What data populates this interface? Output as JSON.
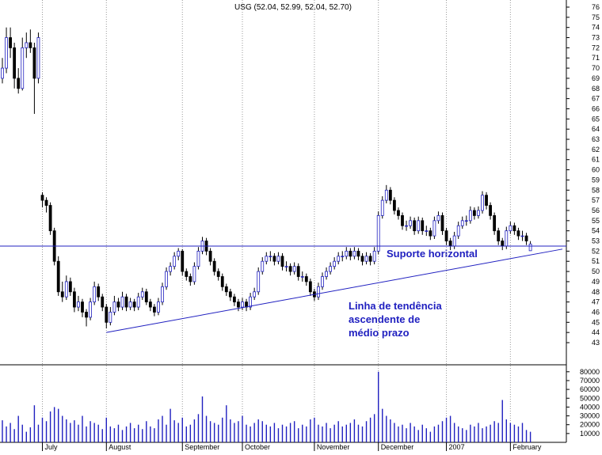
{
  "chart_data": {
    "type": "candlestick",
    "title": "USG (52.04, 52.99, 52.04, 52.70)",
    "ohlc": [
      [
        69,
        71,
        68.5,
        70
      ],
      [
        70,
        74,
        69.5,
        73
      ],
      [
        73,
        74,
        71,
        72
      ],
      [
        72,
        72.5,
        68,
        69
      ],
      [
        69,
        70,
        67.5,
        68
      ],
      [
        68,
        73,
        67.8,
        72
      ],
      [
        72,
        73.5,
        71,
        72.5
      ],
      [
        72.5,
        73.8,
        71.5,
        72
      ],
      [
        72,
        72.5,
        65.5,
        69
      ],
      [
        69,
        73.5,
        68.5,
        73
      ],
      [
        57.5,
        57.8,
        56.3,
        57
      ],
      [
        57,
        57.3,
        55.8,
        56.5
      ],
      [
        56.5,
        56.8,
        53.6,
        54
      ],
      [
        54,
        54.3,
        50.6,
        51
      ],
      [
        51,
        51.5,
        47.6,
        48
      ],
      [
        48,
        49,
        47,
        47.5
      ],
      [
        47.5,
        49.6,
        47.2,
        49
      ],
      [
        49,
        49.4,
        47.6,
        48
      ],
      [
        48,
        48.4,
        46,
        46.5
      ],
      [
        46.5,
        47.6,
        46.1,
        47
      ],
      [
        47,
        47.3,
        45.5,
        46
      ],
      [
        46,
        46.3,
        44.6,
        45.5
      ],
      [
        45.5,
        47.4,
        45.2,
        47
      ],
      [
        47,
        49,
        46.7,
        48.5
      ],
      [
        48.5,
        48.8,
        47.1,
        47.5
      ],
      [
        47.5,
        47.8,
        46.1,
        46.5
      ],
      [
        46.5,
        46.8,
        44.4,
        45
      ],
      [
        45,
        46.5,
        44.7,
        46
      ],
      [
        46,
        47.6,
        45.7,
        47
      ],
      [
        47,
        47.4,
        46.1,
        46.5
      ],
      [
        46.5,
        48,
        46.2,
        47.5
      ],
      [
        47.5,
        47.8,
        46.1,
        46.5
      ],
      [
        46.5,
        47.4,
        46.2,
        47
      ],
      [
        47,
        47.3,
        46.1,
        46.5
      ],
      [
        46.5,
        47.9,
        46.2,
        47.5
      ],
      [
        47.5,
        48.4,
        47.2,
        48
      ],
      [
        48,
        48.3,
        46.7,
        47
      ],
      [
        47,
        47.3,
        46.1,
        46.5
      ],
      [
        46.5,
        46.8,
        45.6,
        46
      ],
      [
        46,
        47.4,
        45.7,
        47
      ],
      [
        47,
        48.9,
        46.7,
        48.5
      ],
      [
        48.5,
        50.4,
        48.2,
        50
      ],
      [
        50,
        50.9,
        49.6,
        50.5
      ],
      [
        50.5,
        51.9,
        50.2,
        51.5
      ],
      [
        51.5,
        52.3,
        51.1,
        52
      ],
      [
        52,
        52.2,
        49.6,
        50
      ],
      [
        50,
        50.3,
        49.1,
        49.5
      ],
      [
        49.5,
        49.8,
        48.6,
        49
      ],
      [
        49,
        50.9,
        48.7,
        50.5
      ],
      [
        50.5,
        52.4,
        50.2,
        52
      ],
      [
        52,
        53.4,
        51.7,
        53
      ],
      [
        53,
        53.3,
        51.6,
        52
      ],
      [
        52,
        52.3,
        50.6,
        51
      ],
      [
        51,
        51.3,
        49.6,
        50
      ],
      [
        50,
        50.3,
        49.1,
        49.5
      ],
      [
        49.5,
        49.8,
        48.1,
        48.5
      ],
      [
        48.5,
        48.8,
        47.6,
        48
      ],
      [
        48,
        48.3,
        47.1,
        47.5
      ],
      [
        47.5,
        47.8,
        46.6,
        47
      ],
      [
        47,
        47.3,
        46.1,
        46.5
      ],
      [
        46.5,
        47.4,
        46.2,
        47
      ],
      [
        47,
        47.3,
        46.1,
        46.5
      ],
      [
        46.5,
        47.9,
        46.2,
        47.5
      ],
      [
        47.5,
        48.4,
        47.2,
        48
      ],
      [
        48,
        50.4,
        47.7,
        50
      ],
      [
        50,
        51.4,
        49.7,
        51
      ],
      [
        51,
        51.9,
        50.7,
        51.5
      ],
      [
        51.5,
        52,
        51,
        51.5
      ],
      [
        51.5,
        51.8,
        50.6,
        51
      ],
      [
        51,
        51.9,
        50.7,
        51.5
      ],
      [
        51.5,
        51.8,
        50.1,
        50.5
      ],
      [
        50.5,
        51,
        50,
        50.5
      ],
      [
        50.5,
        50.8,
        49.6,
        50
      ],
      [
        50,
        50.9,
        49.7,
        50.5
      ],
      [
        50.5,
        50.8,
        49.1,
        49.5
      ],
      [
        49.5,
        50,
        49,
        49.5
      ],
      [
        49.5,
        49.8,
        48.6,
        49
      ],
      [
        49,
        49.3,
        47.6,
        48
      ],
      [
        48,
        48.3,
        47.1,
        47.5
      ],
      [
        47.5,
        48.9,
        47.2,
        48.5
      ],
      [
        48.5,
        49.9,
        48.2,
        49.5
      ],
      [
        49.5,
        50.4,
        49.2,
        50
      ],
      [
        50,
        50.9,
        49.7,
        50.5
      ],
      [
        50.5,
        51.4,
        50.2,
        51
      ],
      [
        51,
        51.9,
        50.7,
        51.5
      ],
      [
        51.5,
        52,
        51,
        51.5
      ],
      [
        51.5,
        52.4,
        51.2,
        52
      ],
      [
        52,
        52.3,
        51.1,
        51.5
      ],
      [
        51.5,
        52.4,
        51.2,
        52
      ],
      [
        52,
        52.3,
        51.1,
        51.5
      ],
      [
        51.5,
        51.8,
        50.6,
        51
      ],
      [
        51,
        51.9,
        50.7,
        51.5
      ],
      [
        51.5,
        51.8,
        50.6,
        51
      ],
      [
        51,
        52.4,
        50.7,
        52
      ],
      [
        52,
        55.9,
        51.7,
        55.5
      ],
      [
        55.5,
        57.4,
        55.2,
        57
      ],
      [
        57,
        58.5,
        56.7,
        58
      ],
      [
        58,
        58.3,
        56.6,
        57
      ],
      [
        57,
        57.3,
        55.6,
        56
      ],
      [
        56,
        56.3,
        55.1,
        55.5
      ],
      [
        55.5,
        55.8,
        54.1,
        54.5
      ],
      [
        54.5,
        55,
        54,
        54.5
      ],
      [
        54.5,
        55.4,
        54.2,
        55
      ],
      [
        55,
        55.3,
        53.6,
        54
      ],
      [
        54,
        55.4,
        53.7,
        55
      ],
      [
        55,
        55.3,
        53.6,
        54
      ],
      [
        54,
        54.5,
        53.5,
        54
      ],
      [
        54,
        54.3,
        53.1,
        53.5
      ],
      [
        53.5,
        55.4,
        53.2,
        55
      ],
      [
        55,
        55.9,
        54.7,
        55.5
      ],
      [
        55.5,
        55.8,
        53.6,
        54
      ],
      [
        54,
        54.3,
        52.6,
        53
      ],
      [
        53,
        53.3,
        52.1,
        52.5
      ],
      [
        52.5,
        53.9,
        52.2,
        53.5
      ],
      [
        53.5,
        54.9,
        53.2,
        54.5
      ],
      [
        54.5,
        55.4,
        54.2,
        55
      ],
      [
        55,
        55.5,
        54.5,
        55
      ],
      [
        55,
        56.4,
        54.7,
        56
      ],
      [
        56,
        56.3,
        55.1,
        55.5
      ],
      [
        55.5,
        56.4,
        55.2,
        56
      ],
      [
        56,
        57.9,
        55.7,
        57.5
      ],
      [
        57.5,
        57.8,
        56.1,
        56.5
      ],
      [
        56.5,
        56.8,
        55.1,
        55.5
      ],
      [
        55.5,
        55.8,
        53.6,
        54
      ],
      [
        54,
        54.3,
        52.6,
        53
      ],
      [
        53,
        53.3,
        52.1,
        52.5
      ],
      [
        52.5,
        54.4,
        52.2,
        54
      ],
      [
        54,
        54.9,
        53.7,
        54.5
      ],
      [
        54.5,
        54.8,
        53.6,
        54
      ],
      [
        54,
        54.3,
        53.1,
        53.5
      ],
      [
        53.5,
        54,
        53,
        53.5
      ],
      [
        53.5,
        53.8,
        52.6,
        53
      ],
      [
        52.04,
        52.99,
        52.04,
        52.7
      ]
    ],
    "volume": [
      25000,
      18000,
      22000,
      15000,
      30000,
      20000,
      12000,
      17000,
      42000,
      20000,
      28000,
      24000,
      35000,
      40000,
      38000,
      30000,
      26000,
      22000,
      25000,
      20000,
      30000,
      18000,
      24000,
      22000,
      20000,
      15000,
      28000,
      18000,
      16000,
      20000,
      14000,
      18000,
      22000,
      16000,
      20000,
      15000,
      24000,
      18000,
      16000,
      26000,
      30000,
      20000,
      38000,
      25000,
      22000,
      28000,
      18000,
      20000,
      26000,
      32000,
      52000,
      30000,
      24000,
      22000,
      20000,
      28000,
      42000,
      26000,
      22000,
      24000,
      30000,
      20000,
      18000,
      22000,
      26000,
      24000,
      20000,
      18000,
      22000,
      16000,
      20000,
      18000,
      22000,
      24000,
      16000,
      20000,
      18000,
      26000,
      28000,
      20000,
      18000,
      22000,
      16000,
      20000,
      24000,
      18000,
      20000,
      22000,
      26000,
      20000,
      18000,
      24000,
      28000,
      32000,
      80000,
      38000,
      30000,
      26000,
      22000,
      18000,
      20000,
      16000,
      22000,
      18000,
      14000,
      20000,
      16000,
      12000,
      18000,
      20000,
      24000,
      28000,
      30000,
      22000,
      18000,
      16000,
      14000,
      20000,
      18000,
      22000,
      16000,
      18000,
      20000,
      24000,
      22000,
      48000,
      26000,
      22000,
      20000,
      18000,
      22000,
      14000,
      12000
    ],
    "xticks": [
      {
        "value": 10,
        "label": "July"
      },
      {
        "value": 26,
        "label": "August"
      },
      {
        "value": 45,
        "label": "September"
      },
      {
        "value": 60,
        "label": "October"
      },
      {
        "value": 78,
        "label": "November"
      },
      {
        "value": 94,
        "label": "December"
      },
      {
        "value": 111,
        "label": "2007"
      },
      {
        "value": 127,
        "label": "February"
      }
    ],
    "ylim": [
      40.9,
      76.7
    ],
    "yticks": [
      43,
      44,
      45,
      46,
      47,
      48,
      49,
      50,
      51,
      52,
      53,
      54,
      55,
      56,
      57,
      58,
      59,
      60,
      61,
      62,
      63,
      64,
      65,
      66,
      67,
      68,
      69,
      70,
      71,
      72,
      73,
      74,
      75,
      76
    ],
    "volume_ylim": [
      0,
      87000
    ],
    "volume_yticks": [
      10000,
      20000,
      30000,
      40000,
      50000,
      60000,
      70000,
      80000
    ],
    "support": 52.5,
    "support_label": "Suporte horizontal",
    "trendline": {
      "x": [
        26,
        140
      ],
      "y": [
        44,
        52.2
      ]
    },
    "trend_label": [
      "Linha de tendência",
      "ascendente de",
      "médio prazo"
    ],
    "line_color": "#2020c0"
  }
}
